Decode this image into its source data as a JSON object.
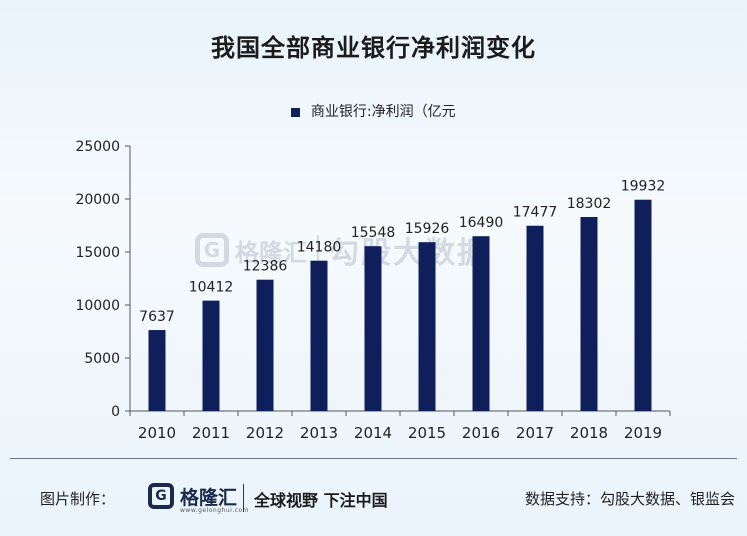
{
  "title": "我国全部商业银行净利润变化",
  "chart_data": {
    "type": "bar",
    "categories": [
      "2010",
      "2011",
      "2012",
      "2013",
      "2014",
      "2015",
      "2016",
      "2017",
      "2018",
      "2019"
    ],
    "series": [
      {
        "name": "商业银行:净利润（亿元",
        "values": [
          7637,
          10412,
          12386,
          14180,
          15548,
          15926,
          16490,
          17477,
          18302,
          19932
        ]
      }
    ],
    "ylim": [
      0,
      25000
    ],
    "yticks": [
      0,
      5000,
      10000,
      15000,
      20000,
      25000
    ],
    "data_labels": true,
    "grid": false,
    "legend_position": "top-center",
    "colors": {
      "bar": "#0e1f5b"
    }
  },
  "watermark": {
    "logo_glyph": "G",
    "brand": "格隆汇",
    "text": "勾股大数据"
  },
  "footer": {
    "credit": "图片制作：",
    "logo_glyph": "G",
    "brand": "格隆汇",
    "url": "www.gelonghui.com",
    "slogan": "全球视野 下注中国",
    "source": "数据支持：勾股大数据、银监会"
  }
}
